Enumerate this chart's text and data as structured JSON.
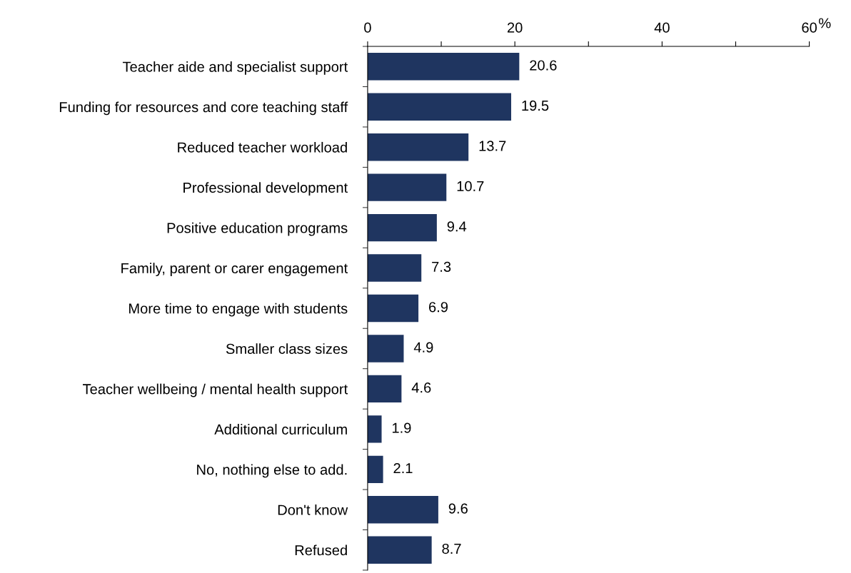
{
  "chart_data": {
    "type": "bar",
    "orientation": "horizontal",
    "xlabel": "%",
    "categories": [
      "Teacher aide and specialist support",
      "Funding for resources and core teaching staff",
      "Reduced teacher workload",
      "Professional development",
      "Positive education programs",
      "Family, parent or carer engagement",
      "More time to engage with students",
      "Smaller class sizes",
      "Teacher wellbeing / mental health support",
      "Additional curriculum",
      "No, nothing else to add.",
      "Don't know",
      "Refused"
    ],
    "values": [
      20.6,
      19.5,
      13.7,
      10.7,
      9.4,
      7.3,
      6.9,
      4.9,
      4.6,
      1.9,
      2.1,
      9.6,
      8.7
    ],
    "color": "#1f3560",
    "xlim": [
      0,
      60
    ],
    "xticks": [
      0,
      {
        "value": 10,
        "label": null
      },
      20,
      {
        "value": 30,
        "label": null
      },
      40,
      {
        "value": 50,
        "label": null
      },
      60
    ],
    "data_labels": true,
    "grid": false,
    "legend": false
  }
}
